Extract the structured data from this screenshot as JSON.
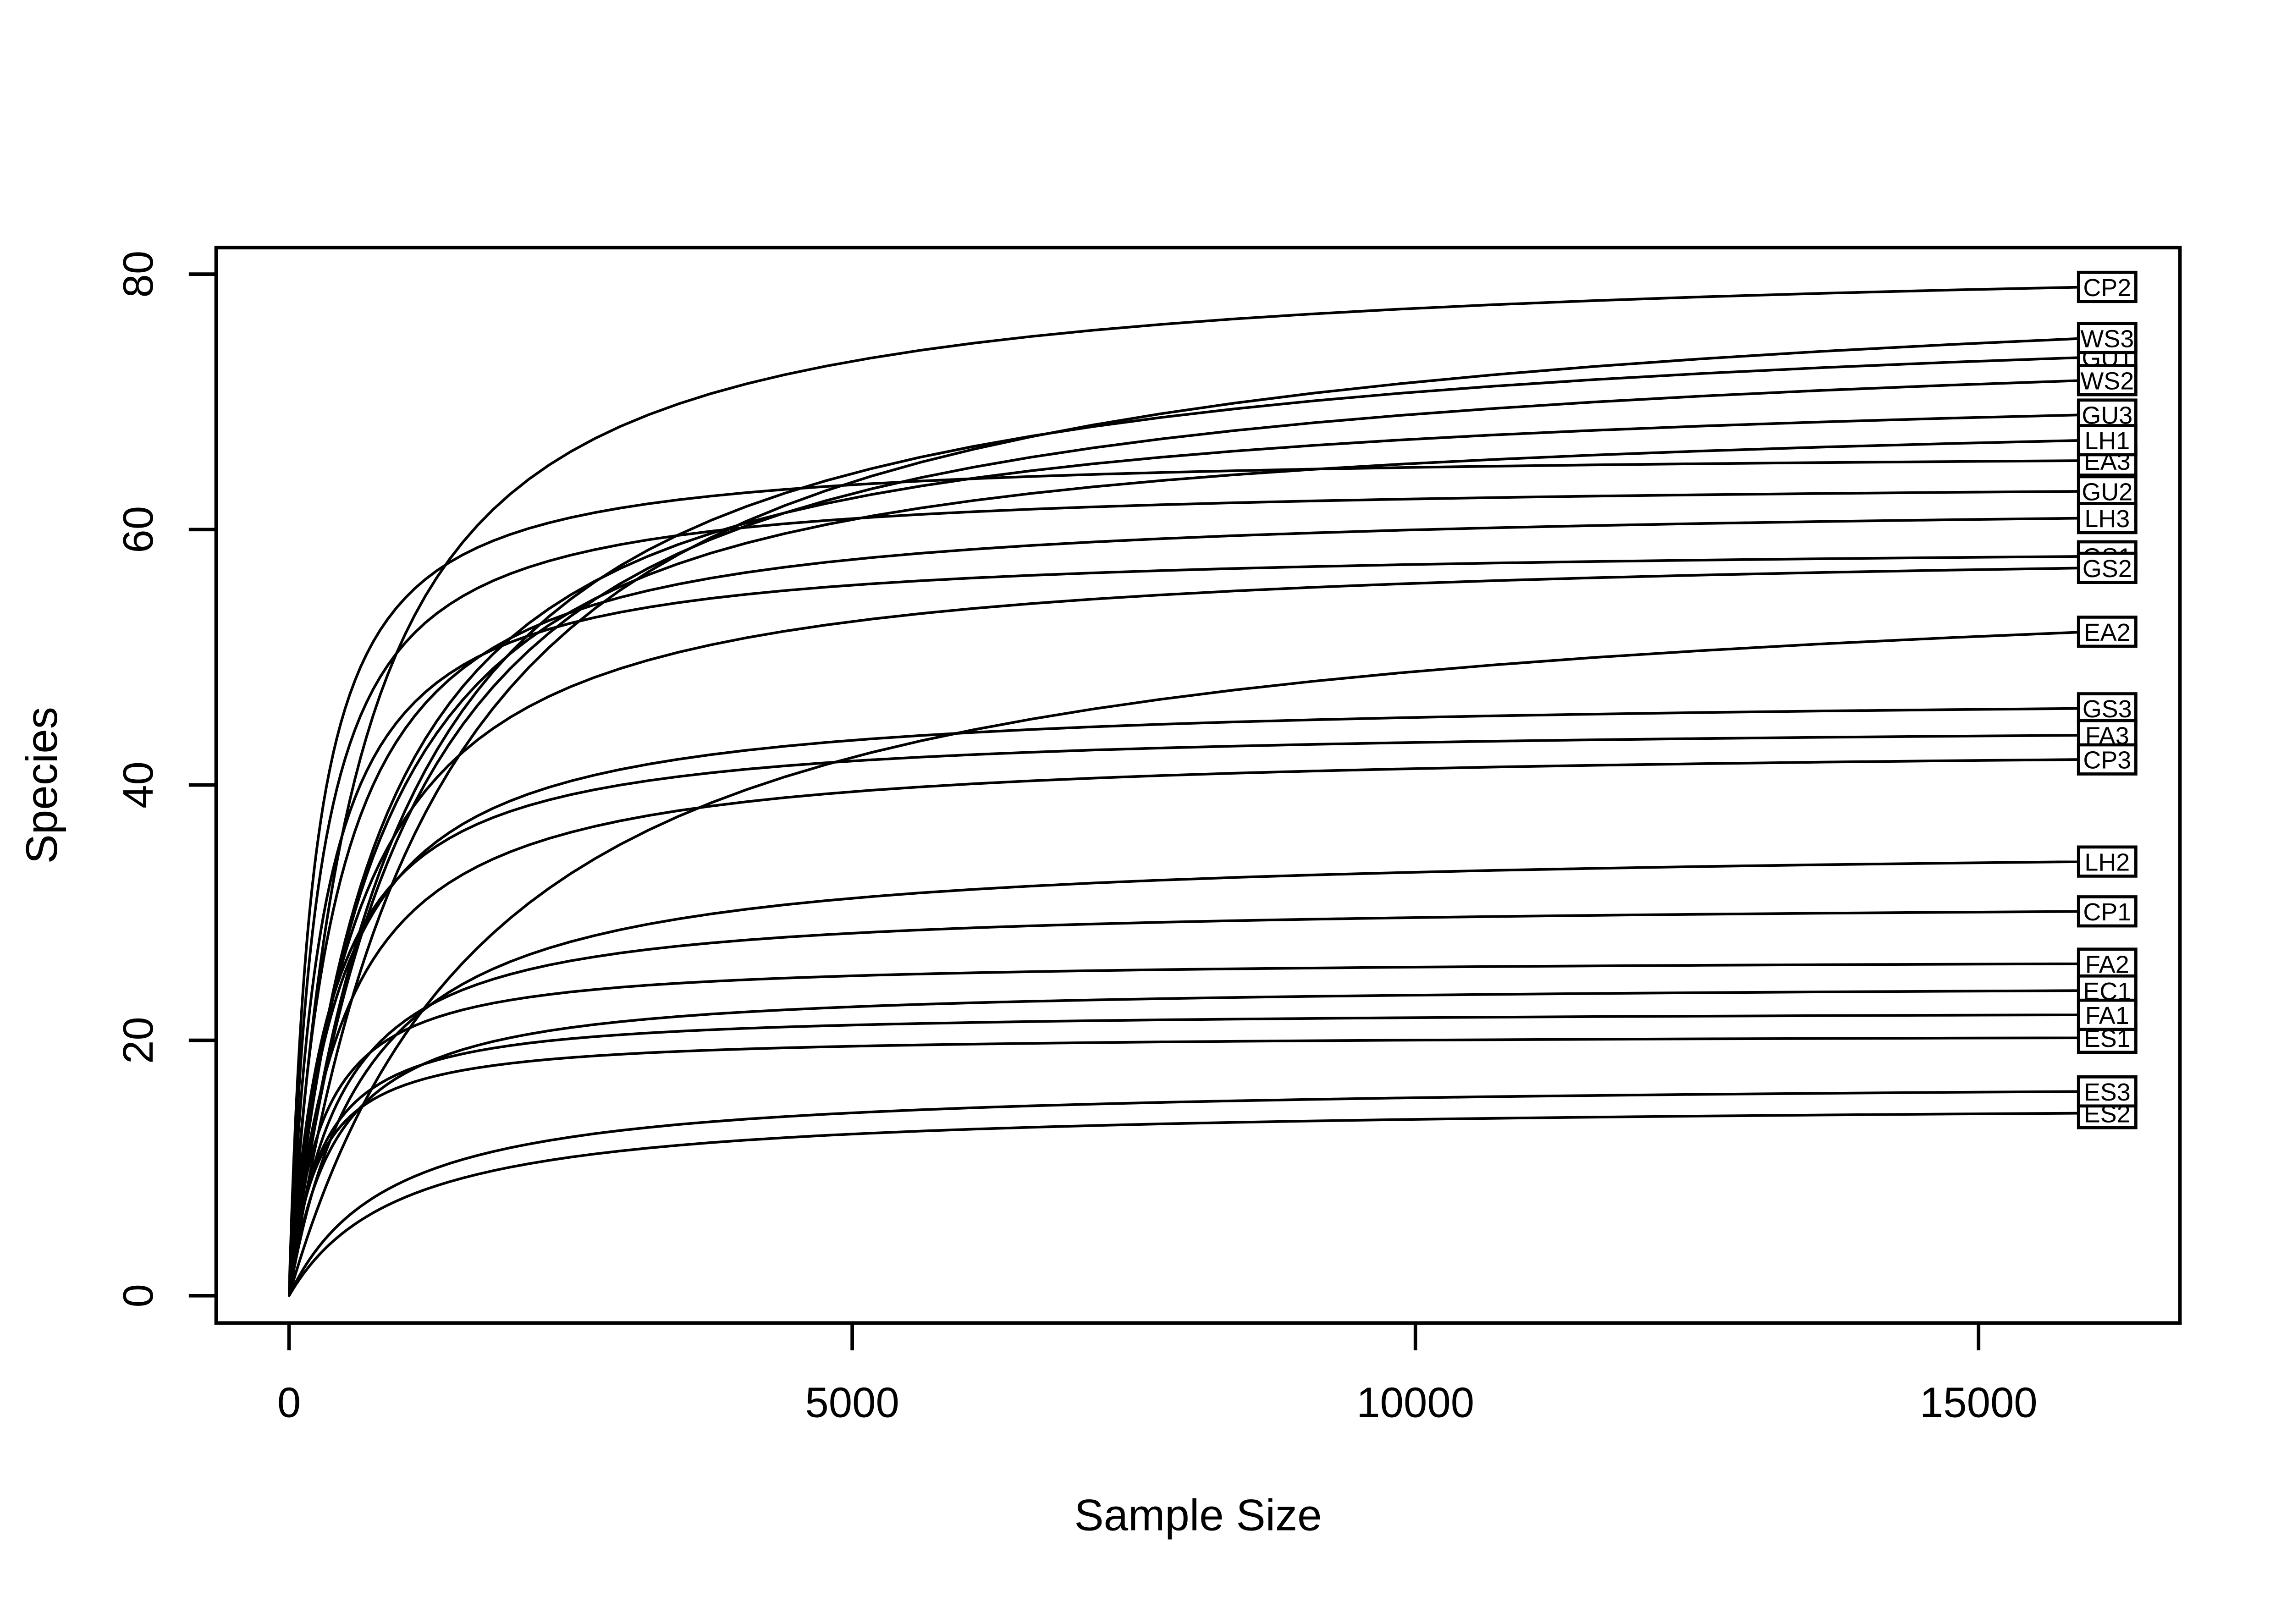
{
  "chart_data": {
    "type": "line",
    "title": "",
    "xlabel": "Sample Size",
    "ylabel": "Species",
    "x_ticks": [
      0,
      5000,
      10000,
      15000
    ],
    "x_tick_labels": [
      "0",
      "5000",
      "10000",
      "15000"
    ],
    "y_ticks": [
      0,
      20,
      40,
      60,
      80
    ],
    "y_tick_labels": [
      "0",
      "20",
      "40",
      "60",
      "80"
    ],
    "x_range_data": [
      0,
      16000
    ],
    "y_range_data": [
      1,
      80
    ],
    "grid": false,
    "curve_color": "#000000",
    "background_color": "#ffffff",
    "label_box": {
      "fill": "#ffffff",
      "border": "#000000"
    },
    "model": "species(n) = total * ((b + 16000) / 16000) * n / (n + b), n = 1..16000",
    "series": [
      {
        "name": "CP2",
        "total": 79.0,
        "b": 600,
        "box_behind": false
      },
      {
        "name": "WS3",
        "total": 75.0,
        "b": 1400,
        "box_behind": false
      },
      {
        "name": "GU1",
        "total": 73.5,
        "b": 1100,
        "box_behind": true
      },
      {
        "name": "WS2",
        "total": 71.7,
        "b": 1100,
        "box_behind": false
      },
      {
        "name": "GU3",
        "total": 69.0,
        "b": 800,
        "box_behind": false
      },
      {
        "name": "LH1",
        "total": 67.0,
        "b": 780,
        "box_behind": false
      },
      {
        "name": "EA3",
        "total": 65.4,
        "b": 220,
        "box_behind": true
      },
      {
        "name": "GU2",
        "total": 63.0,
        "b": 260,
        "box_behind": false
      },
      {
        "name": "LH3",
        "total": 60.9,
        "b": 420,
        "box_behind": false
      },
      {
        "name": "GS1",
        "total": 57.9,
        "b": 300,
        "box_behind": true
      },
      {
        "name": "GS2",
        "total": 57.0,
        "b": 600,
        "box_behind": false
      },
      {
        "name": "EA2",
        "total": 52.0,
        "b": 1900,
        "box_behind": false
      },
      {
        "name": "GS3",
        "total": 46.0,
        "b": 430,
        "box_behind": false
      },
      {
        "name": "FA3",
        "total": 43.9,
        "b": 360,
        "box_behind": false
      },
      {
        "name": "CP3",
        "total": 42.0,
        "b": 480,
        "box_behind": false
      },
      {
        "name": "LH2",
        "total": 34.0,
        "b": 700,
        "box_behind": false
      },
      {
        "name": "CP1",
        "total": 30.1,
        "b": 450,
        "box_behind": false
      },
      {
        "name": "FA2",
        "total": 26.0,
        "b": 280,
        "box_behind": false
      },
      {
        "name": "EC1",
        "total": 23.9,
        "b": 420,
        "box_behind": false
      },
      {
        "name": "FA1",
        "total": 22.0,
        "b": 280,
        "box_behind": false
      },
      {
        "name": "ES1",
        "total": 20.2,
        "b": 250,
        "box_behind": true
      },
      {
        "name": "ES3",
        "total": 16.0,
        "b": 900,
        "box_behind": false
      },
      {
        "name": "ES2",
        "total": 14.3,
        "b": 1000,
        "box_behind": true
      }
    ]
  }
}
